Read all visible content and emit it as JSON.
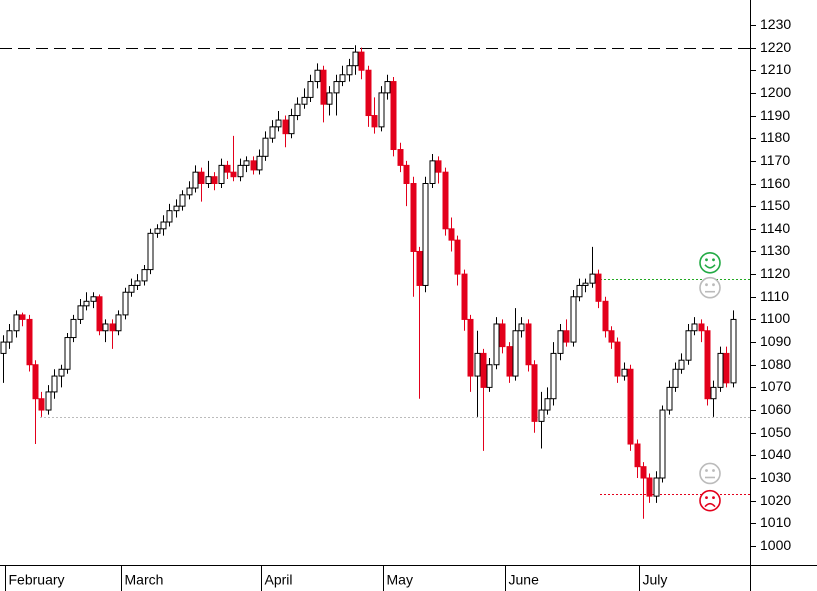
{
  "chart_data": {
    "type": "candlestick",
    "categories": [
      null,
      "February",
      null,
      null,
      null,
      null,
      null,
      null,
      null,
      null,
      null,
      null,
      null,
      null,
      null,
      null,
      null,
      null,
      null,
      "March",
      null,
      null,
      null,
      null,
      null,
      null,
      null,
      null,
      null,
      null,
      null,
      null,
      null,
      null,
      null,
      null,
      null,
      null,
      null,
      null,
      null,
      "April",
      null,
      null,
      null,
      null,
      null,
      null,
      null,
      null,
      null,
      null,
      null,
      null,
      null,
      null,
      null,
      null,
      null,
      null,
      "May",
      null,
      null,
      null,
      null,
      null,
      null,
      null,
      null,
      null,
      null,
      null,
      null,
      null,
      null,
      null,
      null,
      null,
      null,
      "June",
      null,
      null,
      null,
      null,
      null,
      null,
      null,
      null,
      null,
      null,
      null,
      null,
      null,
      null,
      null,
      null,
      null,
      null,
      null,
      null,
      "July",
      null,
      null,
      null,
      null,
      null,
      null,
      null,
      null,
      null,
      null,
      null,
      null,
      null,
      null
    ],
    "open": [
      1085,
      1090,
      1095,
      1102,
      1100,
      1080,
      1065,
      1060,
      1068,
      1075,
      1078,
      1092,
      1100,
      1106,
      1108,
      1110,
      1095,
      1098,
      1095,
      1102,
      1112,
      1115,
      1117,
      1122,
      1138,
      1140,
      1143,
      1148,
      1150,
      1155,
      1158,
      1165,
      1160,
      1163,
      1160,
      1168,
      1165,
      1163,
      1168,
      1170,
      1166,
      1172,
      1180,
      1185,
      1188,
      1182,
      1190,
      1195,
      1198,
      1205,
      1210,
      1195,
      1200,
      1205,
      1208,
      1212,
      1218,
      1210,
      1190,
      1185,
      1200,
      1205,
      1175,
      1168,
      1160,
      1130,
      1115,
      1160,
      1170,
      1165,
      1140,
      1135,
      1120,
      1100,
      1075,
      1085,
      1070,
      1080,
      1098,
      1088,
      1075,
      1095,
      1098,
      1080,
      1055,
      1060,
      1065,
      1085,
      1095,
      1090,
      1110,
      1115,
      1116,
      1120,
      1108,
      1095,
      1090,
      1075,
      1078,
      1045,
      1035,
      1030,
      1022,
      1030,
      1060,
      1070,
      1078,
      1082,
      1095,
      1098,
      1095,
      1065,
      1070,
      1085,
      1072
    ],
    "high": [
      1093,
      1098,
      1104,
      1103,
      1102,
      1082,
      1068,
      1071,
      1078,
      1080,
      1094,
      1102,
      1109,
      1112,
      1112,
      1111,
      1100,
      1100,
      1104,
      1114,
      1118,
      1120,
      1124,
      1140,
      1142,
      1146,
      1151,
      1153,
      1157,
      1161,
      1168,
      1167,
      1170,
      1165,
      1171,
      1170,
      1181,
      1171,
      1172,
      1172,
      1175,
      1183,
      1188,
      1192,
      1190,
      1193,
      1198,
      1202,
      1208,
      1213,
      1212,
      1203,
      1208,
      1212,
      1215,
      1221,
      1220,
      1212,
      1198,
      1203,
      1208,
      1207,
      1178,
      1170,
      1163,
      1132,
      1163,
      1173,
      1172,
      1167,
      1145,
      1137,
      1122,
      1102,
      1095,
      1087,
      1083,
      1101,
      1100,
      1090,
      1105,
      1101,
      1100,
      1082,
      1068,
      1070,
      1090,
      1098,
      1100,
      1113,
      1118,
      1118,
      1132,
      1122,
      1110,
      1097,
      1092,
      1081,
      1080,
      1047,
      1037,
      1032,
      1033,
      1062,
      1073,
      1081,
      1085,
      1098,
      1101,
      1100,
      1097,
      1073,
      1088,
      1088,
      1104
    ],
    "low": [
      1072,
      1087,
      1092,
      1097,
      1077,
      1045,
      1057,
      1058,
      1065,
      1070,
      1076,
      1090,
      1098,
      1104,
      1105,
      1093,
      1090,
      1087,
      1093,
      1100,
      1110,
      1113,
      1115,
      1120,
      1136,
      1137,
      1141,
      1145,
      1148,
      1153,
      1156,
      1152,
      1158,
      1157,
      1158,
      1162,
      1161,
      1161,
      1165,
      1164,
      1164,
      1170,
      1178,
      1183,
      1176,
      1180,
      1188,
      1193,
      1196,
      1202,
      1187,
      1190,
      1190,
      1203,
      1205,
      1208,
      1206,
      1185,
      1182,
      1183,
      1197,
      1172,
      1165,
      1150,
      1110,
      1065,
      1112,
      1158,
      1160,
      1137,
      1130,
      1115,
      1095,
      1068,
      1057,
      1042,
      1068,
      1078,
      1085,
      1072,
      1073,
      1092,
      1077,
      1050,
      1043,
      1058,
      1062,
      1082,
      1088,
      1088,
      1108,
      1112,
      1114,
      1105,
      1092,
      1087,
      1072,
      1073,
      1042,
      1030,
      1012,
      1019,
      1019,
      1028,
      1058,
      1068,
      1076,
      1080,
      1093,
      1090,
      1062,
      1057,
      1068,
      1070,
      1070
    ],
    "close": [
      1090,
      1095,
      1102,
      1100,
      1080,
      1065,
      1060,
      1068,
      1075,
      1078,
      1092,
      1100,
      1106,
      1108,
      1110,
      1095,
      1098,
      1095,
      1102,
      1112,
      1115,
      1117,
      1122,
      1138,
      1140,
      1143,
      1148,
      1150,
      1155,
      1158,
      1165,
      1160,
      1163,
      1160,
      1168,
      1165,
      1163,
      1168,
      1170,
      1166,
      1172,
      1180,
      1185,
      1188,
      1182,
      1190,
      1195,
      1198,
      1205,
      1210,
      1195,
      1200,
      1205,
      1208,
      1212,
      1218,
      1210,
      1190,
      1185,
      1200,
      1205,
      1175,
      1168,
      1160,
      1130,
      1115,
      1160,
      1170,
      1165,
      1140,
      1135,
      1120,
      1100,
      1075,
      1085,
      1070,
      1080,
      1098,
      1088,
      1075,
      1095,
      1098,
      1080,
      1055,
      1060,
      1065,
      1085,
      1095,
      1090,
      1110,
      1115,
      1116,
      1120,
      1108,
      1095,
      1090,
      1075,
      1078,
      1045,
      1035,
      1030,
      1022,
      1030,
      1060,
      1070,
      1078,
      1082,
      1095,
      1098,
      1095,
      1065,
      1070,
      1085,
      1072,
      1100
    ],
    "up_color": "#ffffff",
    "down_color": "#e3001b",
    "ylim": [
      991.6,
      1241
    ],
    "yticks": [
      1000,
      1010,
      1020,
      1030,
      1040,
      1050,
      1060,
      1070,
      1080,
      1090,
      1100,
      1110,
      1120,
      1130,
      1140,
      1150,
      1160,
      1170,
      1180,
      1190,
      1200,
      1210,
      1220,
      1230
    ],
    "reference_lines": [
      {
        "value": 1220,
        "style": "dashed",
        "color": "#000000"
      },
      {
        "value": 1118,
        "style": "dotted",
        "color": "#22aa22"
      },
      {
        "value": 1057,
        "style": "dotted",
        "color": "#bbbbbb"
      },
      {
        "value": 1023,
        "style": "dotted",
        "color": "#e3001b"
      }
    ],
    "markers": [
      {
        "value": 1125,
        "mood": "happy",
        "color": "#22aa44"
      },
      {
        "value": 1114,
        "mood": "neutral",
        "color": "#bbbbbb"
      },
      {
        "value": 1032,
        "mood": "neutral",
        "color": "#bbbbbb"
      },
      {
        "value": 1020,
        "mood": "sad",
        "color": "#e3001b"
      }
    ]
  }
}
